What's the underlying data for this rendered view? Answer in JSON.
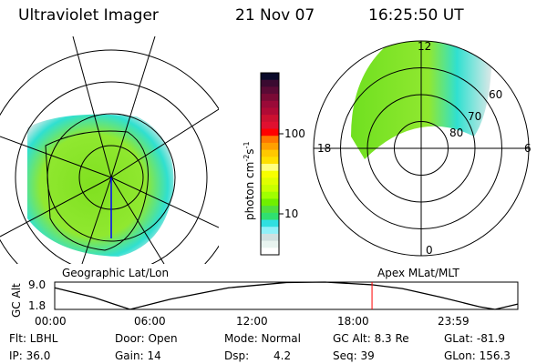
{
  "header": {
    "instrument": "Ultraviolet Imager",
    "date": "21 Nov 07",
    "time": "16:25:50 UT"
  },
  "left_map": {
    "label": "Geographic Lat/Lon"
  },
  "right_map": {
    "label": "Apex MLat/MLT",
    "mlt_labels": [
      "12",
      "18",
      "6",
      "0"
    ],
    "mlat_labels": [
      "80",
      "70",
      "60"
    ]
  },
  "colorbar": {
    "label": "photon cm",
    "exp1": "-2",
    "unit2": "s",
    "exp2": "-1",
    "ticks": [
      "100",
      "10"
    ],
    "colors": [
      "#0a0a2a",
      "#3a0a30",
      "#5a0a35",
      "#7a0a35",
      "#9a0a38",
      "#b00a35",
      "#cc1030",
      "#e01030",
      "#ff0000",
      "#ff7700",
      "#ffa000",
      "#ffc800",
      "#ffe000",
      "#ffff80",
      "#f8ff00",
      "#e0ff00",
      "#c8ff00",
      "#a0ff00",
      "#70f000",
      "#50e040",
      "#30e070",
      "#30e0e0",
      "#90f0f8",
      "#d0e0e0",
      "#e8f4f0",
      "#ffffff"
    ]
  },
  "chart_data": {
    "type": "line",
    "ylabel": "GC Alt",
    "yticks": [
      "9.0",
      "1.8"
    ],
    "ylim": [
      1.8,
      9.0
    ],
    "xticks": [
      "00:00",
      "06:00",
      "12:00",
      "18:00",
      "23:59"
    ],
    "xlim_hours": [
      0,
      23.98
    ],
    "x_hours": [
      0,
      2,
      3.9,
      6,
      9,
      12,
      14,
      16.42,
      18,
      20,
      22,
      22.8,
      23.98
    ],
    "y": [
      7.5,
      5.0,
      1.8,
      4.5,
      7.5,
      8.9,
      9.0,
      8.3,
      7.3,
      5.0,
      2.5,
      1.8,
      3.2
    ],
    "marker_hour": 16.43,
    "marker_color": "#ff0000"
  },
  "status": {
    "filter": "Flt: LBHL",
    "ip": "IP: 36.0",
    "door": "Door: Open",
    "gain": "Gain: 14",
    "mode": "Mode: Normal",
    "dsp_label": "Dsp:",
    "dsp_value": "4.2",
    "gc_alt": "GC Alt: 8.3 Re",
    "seq": "Seq: 39",
    "glat": "GLat: -81.9",
    "glon": "GLon: 156.3"
  }
}
